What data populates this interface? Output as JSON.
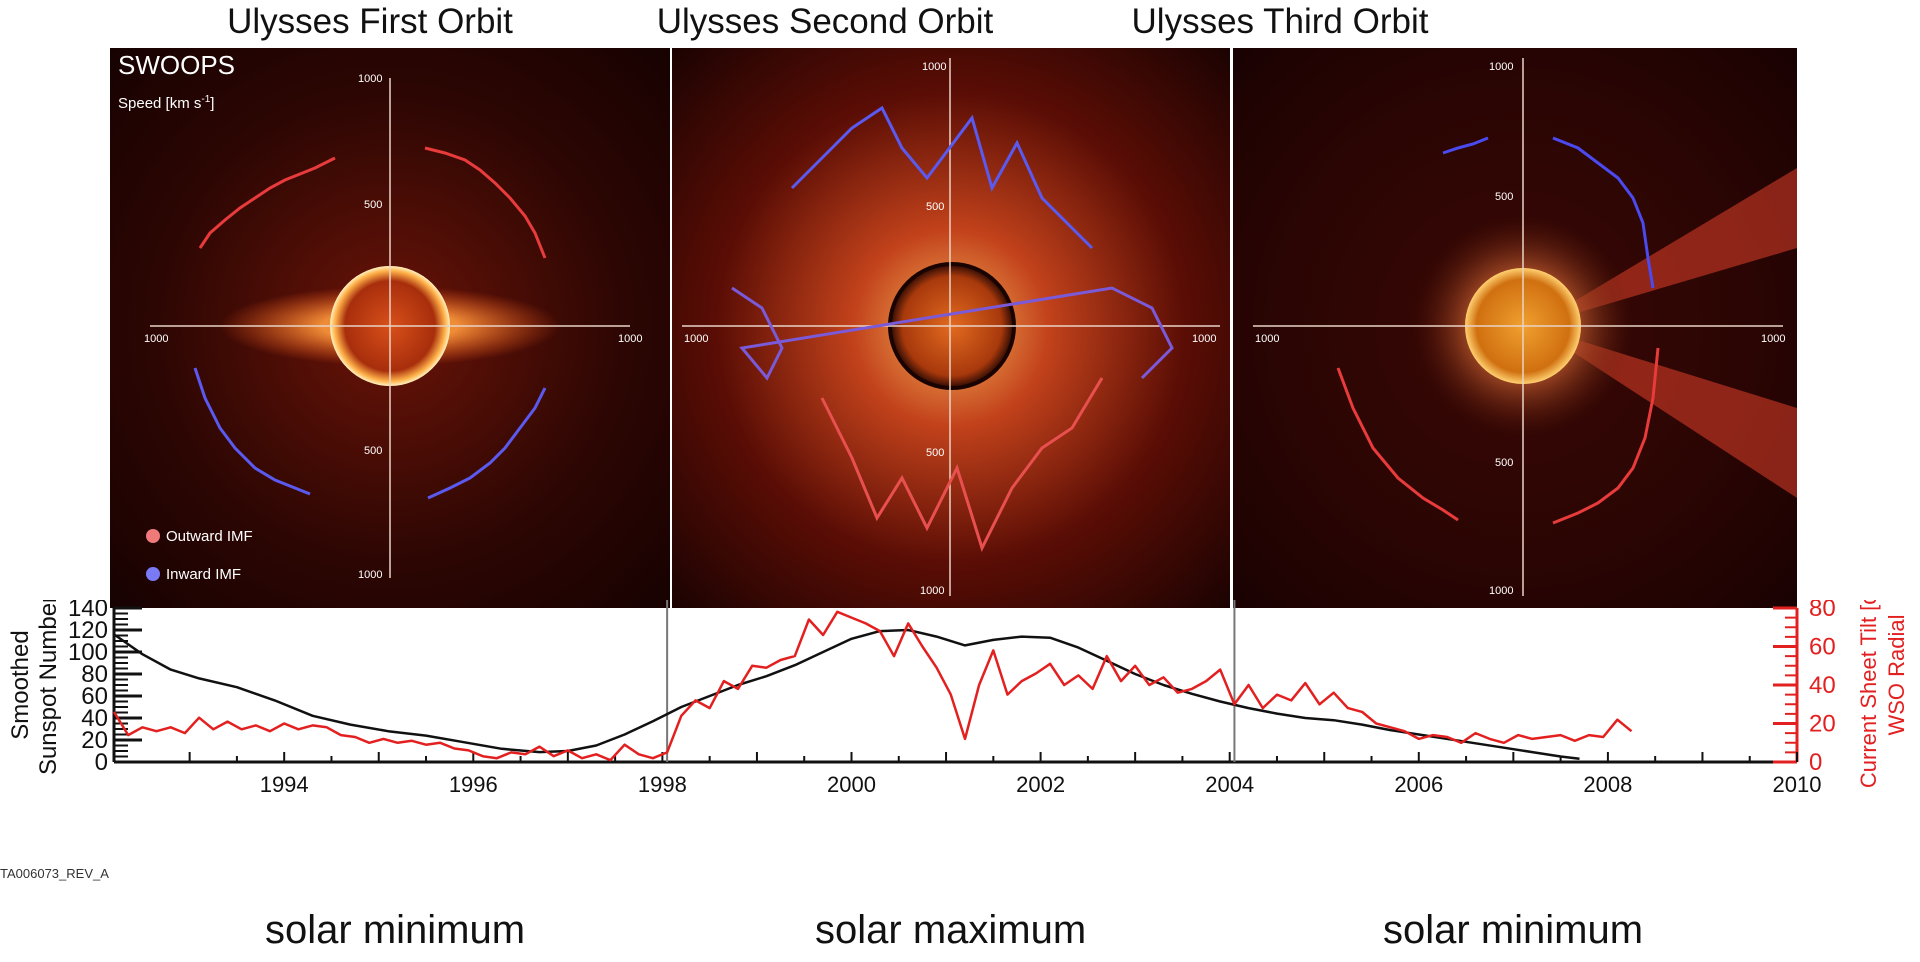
{
  "orbit_titles": [
    "Ulysses First Orbit",
    "Ulysses Second Orbit",
    "Ulysses Third Orbit"
  ],
  "polar_panels": {
    "instrument": "SWOOPS",
    "speed_label": "Speed [km s",
    "speed_unit_sup": "-1",
    "speed_label_close": "]",
    "radial_tick_labels": [
      "1000",
      "500",
      "500",
      "1000"
    ],
    "horizontal_tick_labels": [
      "1000",
      "1000"
    ],
    "legend": [
      {
        "label": "Outward IMF",
        "color": "#f07a7a"
      },
      {
        "label": "Inward IMF",
        "color": "#7a7af5"
      }
    ]
  },
  "colors": {
    "outward": "#e83b3b",
    "inward": "#3b3be8",
    "sunspot": "#111111",
    "tilt": "#e32020",
    "panel_bg": "#2a0604"
  },
  "chart_data": {
    "type": "line",
    "xlim": [
      1992.2,
      2010
    ],
    "x_tick_labels": [
      "1994",
      "1996",
      "1998",
      "2000",
      "2002",
      "2004",
      "2006",
      "2008",
      "2010"
    ],
    "ylabel_left": [
      "Smoothed",
      "Sunspot Number"
    ],
    "ylim_left": [
      0,
      140
    ],
    "y_ticks_left": [
      "0",
      "20",
      "40",
      "60",
      "80",
      "100",
      "120",
      "140"
    ],
    "ylabel_right": [
      "Current Sheet Tilt [deg]",
      "WSO Radial"
    ],
    "ylim_right": [
      0,
      80
    ],
    "y_ticks_right": [
      "0",
      "20",
      "40",
      "60",
      "80"
    ],
    "orbit_dividers": [
      1998.05,
      2004.05
    ],
    "series": [
      {
        "name": "Smoothed Sunspot Number",
        "axis": "left",
        "x": [
          1992.2,
          1992.5,
          1992.8,
          1993.1,
          1993.5,
          1993.9,
          1994.3,
          1994.7,
          1995.1,
          1995.5,
          1995.9,
          1996.3,
          1996.7,
          1997.0,
          1997.3,
          1997.6,
          1997.9,
          1998.2,
          1998.5,
          1998.8,
          1999.1,
          1999.4,
          1999.7,
          2000.0,
          2000.3,
          2000.6,
          2000.9,
          2001.2,
          2001.5,
          2001.8,
          2002.1,
          2002.4,
          2002.7,
          2003.0,
          2003.3,
          2003.6,
          2003.9,
          2004.2,
          2004.5,
          2004.8,
          2005.1,
          2005.4,
          2005.7,
          2006.0,
          2006.3,
          2006.6,
          2006.9,
          2007.2,
          2007.5,
          2007.7
        ],
        "values": [
          116,
          98,
          84,
          76,
          68,
          56,
          42,
          34,
          28,
          24,
          18,
          12,
          9,
          10,
          15,
          25,
          37,
          50,
          60,
          70,
          78,
          88,
          100,
          112,
          119,
          120,
          114,
          106,
          111,
          114,
          113,
          104,
          92,
          80,
          70,
          62,
          55,
          49,
          44,
          40,
          38,
          34,
          29,
          25,
          21,
          17,
          13,
          9,
          5,
          3
        ]
      },
      {
        "name": "Current Sheet Tilt",
        "axis": "right",
        "x": [
          1992.2,
          1992.35,
          1992.5,
          1992.65,
          1992.8,
          1992.95,
          1993.1,
          1993.25,
          1993.4,
          1993.55,
          1993.7,
          1993.85,
          1994.0,
          1994.15,
          1994.3,
          1994.45,
          1994.6,
          1994.75,
          1994.9,
          1995.05,
          1995.2,
          1995.35,
          1995.5,
          1995.65,
          1995.8,
          1995.95,
          1996.1,
          1996.25,
          1996.4,
          1996.55,
          1996.7,
          1996.85,
          1997.0,
          1997.15,
          1997.3,
          1997.45,
          1997.6,
          1997.75,
          1997.9,
          1998.05,
          1998.2,
          1998.35,
          1998.5,
          1998.65,
          1998.8,
          1998.95,
          1999.1,
          1999.25,
          1999.4,
          1999.55,
          1999.7,
          1999.85,
          2000.0,
          2000.15,
          2000.3,
          2000.45,
          2000.6,
          2000.75,
          2000.9,
          2001.05,
          2001.2,
          2001.35,
          2001.5,
          2001.65,
          2001.8,
          2001.95,
          2002.1,
          2002.25,
          2002.4,
          2002.55,
          2002.7,
          2002.85,
          2003.0,
          2003.15,
          2003.3,
          2003.45,
          2003.6,
          2003.75,
          2003.9,
          2004.05,
          2004.2,
          2004.35,
          2004.5,
          2004.65,
          2004.8,
          2004.95,
          2005.1,
          2005.25,
          2005.4,
          2005.55,
          2005.7,
          2005.85,
          2006.0,
          2006.15,
          2006.3,
          2006.45,
          2006.6,
          2006.75,
          2006.9,
          2007.05,
          2007.2,
          2007.35,
          2007.5,
          2007.65,
          2007.8,
          2007.95,
          2008.1,
          2008.25
        ],
        "values": [
          26,
          14,
          18,
          16,
          18,
          15,
          23,
          17,
          21,
          17,
          19,
          16,
          20,
          17,
          19,
          18,
          14,
          13,
          10,
          12,
          10,
          11,
          9,
          10,
          7,
          6,
          3,
          2,
          5,
          4,
          8,
          3,
          6,
          2,
          4,
          1,
          9,
          4,
          2,
          5,
          24,
          32,
          28,
          42,
          38,
          50,
          49,
          53,
          55,
          74,
          66,
          78,
          75,
          72,
          68,
          55,
          72,
          60,
          49,
          35,
          12,
          40,
          58,
          35,
          42,
          46,
          51,
          40,
          45,
          38,
          55,
          42,
          50,
          40,
          44,
          36,
          38,
          42,
          48,
          30,
          40,
          28,
          35,
          32,
          41,
          30,
          36,
          28,
          26,
          20,
          18,
          16,
          12,
          14,
          13,
          10,
          15,
          12,
          10,
          14,
          12,
          13,
          14,
          11,
          14,
          13,
          22,
          16
        ]
      }
    ]
  },
  "ref_code": "TA006073_REV_A",
  "phase_labels": [
    "solar minimum",
    "solar maximum",
    "solar minimum"
  ]
}
